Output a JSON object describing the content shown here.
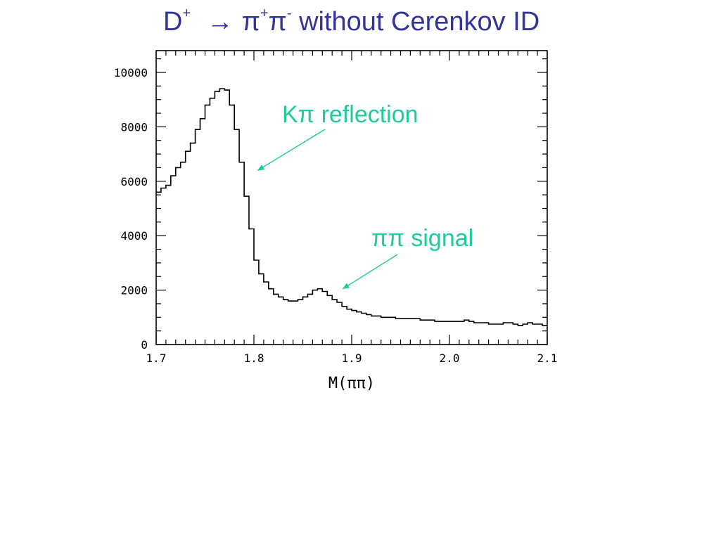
{
  "title": {
    "prefix": "D",
    "prefix_sup": "+",
    "arrow": "→",
    "pi1": "π",
    "pi1_sup": "+",
    "pi2": "π",
    "pi2_sup": "-",
    "rest": "without Cerenkov ID"
  },
  "colors": {
    "title": "#333399",
    "annotation": "#1FCB9B",
    "histogram": "#000000"
  },
  "chart_data": {
    "type": "histogram",
    "xlabel": "M(ππ)",
    "ylabel": "",
    "xlim": [
      1.7,
      2.1
    ],
    "ylim": [
      0,
      10800
    ],
    "x_ticks": [
      "1.7",
      "1.8",
      "1.9",
      "2.0",
      "2.1"
    ],
    "x_tick_values": [
      1.7,
      1.8,
      1.9,
      2.0,
      2.1
    ],
    "y_ticks": [
      "0",
      "2000",
      "4000",
      "6000",
      "8000",
      "10000"
    ],
    "y_tick_values": [
      0,
      2000,
      4000,
      6000,
      8000,
      10000
    ],
    "bin_width": 0.005,
    "bin_start": 1.7,
    "values": [
      5600,
      5750,
      5850,
      6200,
      6500,
      6700,
      7100,
      7400,
      7900,
      8300,
      8800,
      9050,
      9300,
      9400,
      9350,
      8800,
      7900,
      6700,
      5450,
      4250,
      3100,
      2600,
      2300,
      2050,
      1850,
      1750,
      1650,
      1600,
      1600,
      1650,
      1750,
      1850,
      2000,
      2050,
      1950,
      1800,
      1650,
      1550,
      1400,
      1300,
      1250,
      1200,
      1150,
      1100,
      1050,
      1050,
      1000,
      1000,
      1000,
      950,
      950,
      950,
      950,
      950,
      900,
      900,
      900,
      850,
      850,
      850,
      850,
      850,
      850,
      900,
      850,
      800,
      800,
      800,
      750,
      750,
      750,
      800,
      800,
      750,
      700,
      750,
      800,
      750,
      750,
      700
    ],
    "annotations": [
      {
        "text": "Kπ reflection",
        "points_to_x": 1.804,
        "points_to_y": 6400
      },
      {
        "text": "ππ signal",
        "points_to_x": 1.891,
        "points_to_y": 2050
      }
    ]
  }
}
